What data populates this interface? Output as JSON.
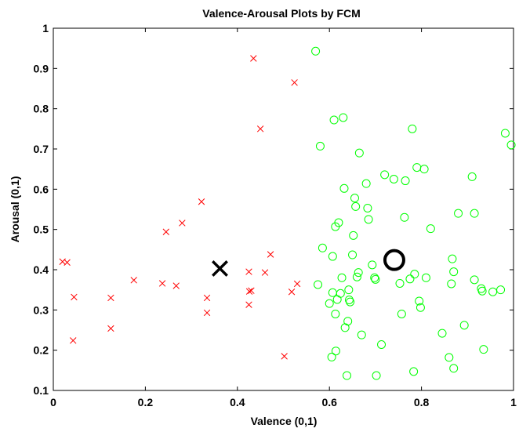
{
  "chart_data": {
    "type": "scatter",
    "title": "Valence-Arousal Plots by FCM",
    "xlabel": "Valence (0,1)",
    "ylabel": "Arousal (0,1)",
    "xlim": [
      0,
      1
    ],
    "ylim": [
      0.1,
      1
    ],
    "xticks": [
      "0",
      "0.2",
      "0.4",
      "0.6",
      "0.8",
      "1"
    ],
    "yticks": [
      "0.1",
      "0.2",
      "0.3",
      "0.4",
      "0.5",
      "0.6",
      "0.7",
      "0.8",
      "0.9",
      "1"
    ],
    "grid": false,
    "series": [
      {
        "marker": "x",
        "color": "#ff0000",
        "points": [
          [
            0.02,
            0.42
          ],
          [
            0.03,
            0.418
          ],
          [
            0.045,
            0.332
          ],
          [
            0.043,
            0.224
          ],
          [
            0.125,
            0.33
          ],
          [
            0.125,
            0.254
          ],
          [
            0.175,
            0.374
          ],
          [
            0.237,
            0.366
          ],
          [
            0.245,
            0.494
          ],
          [
            0.267,
            0.36
          ],
          [
            0.28,
            0.516
          ],
          [
            0.322,
            0.569
          ],
          [
            0.334,
            0.33
          ],
          [
            0.334,
            0.293
          ],
          [
            0.425,
            0.395
          ],
          [
            0.426,
            0.346
          ],
          [
            0.43,
            0.348
          ],
          [
            0.425,
            0.313
          ],
          [
            0.435,
            0.925
          ],
          [
            0.45,
            0.75
          ],
          [
            0.46,
            0.393
          ],
          [
            0.472,
            0.438
          ],
          [
            0.502,
            0.185
          ],
          [
            0.518,
            0.345
          ],
          [
            0.524,
            0.865
          ],
          [
            0.53,
            0.365
          ]
        ]
      },
      {
        "marker": "o",
        "color": "#00ff00",
        "points": [
          [
            0.57,
            0.943
          ],
          [
            0.575,
            0.363
          ],
          [
            0.58,
            0.707
          ],
          [
            0.585,
            0.454
          ],
          [
            0.6,
            0.316
          ],
          [
            0.605,
            0.183
          ],
          [
            0.607,
            0.433
          ],
          [
            0.607,
            0.343
          ],
          [
            0.61,
            0.772
          ],
          [
            0.613,
            0.507
          ],
          [
            0.613,
            0.29
          ],
          [
            0.614,
            0.198
          ],
          [
            0.617,
            0.326
          ],
          [
            0.62,
            0.517
          ],
          [
            0.624,
            0.341
          ],
          [
            0.627,
            0.38
          ],
          [
            0.63,
            0.778
          ],
          [
            0.632,
            0.602
          ],
          [
            0.634,
            0.256
          ],
          [
            0.638,
            0.137
          ],
          [
            0.64,
            0.272
          ],
          [
            0.642,
            0.35
          ],
          [
            0.643,
            0.325
          ],
          [
            0.645,
            0.32
          ],
          [
            0.65,
            0.437
          ],
          [
            0.652,
            0.485
          ],
          [
            0.655,
            0.578
          ],
          [
            0.657,
            0.557
          ],
          [
            0.66,
            0.382
          ],
          [
            0.663,
            0.393
          ],
          [
            0.665,
            0.69
          ],
          [
            0.67,
            0.238
          ],
          [
            0.68,
            0.614
          ],
          [
            0.683,
            0.553
          ],
          [
            0.685,
            0.525
          ],
          [
            0.693,
            0.412
          ],
          [
            0.698,
            0.38
          ],
          [
            0.7,
            0.376
          ],
          [
            0.702,
            0.137
          ],
          [
            0.713,
            0.214
          ],
          [
            0.72,
            0.636
          ],
          [
            0.74,
            0.625
          ],
          [
            0.753,
            0.366
          ],
          [
            0.757,
            0.29
          ],
          [
            0.763,
            0.53
          ],
          [
            0.765,
            0.621
          ],
          [
            0.775,
            0.377
          ],
          [
            0.78,
            0.75
          ],
          [
            0.783,
            0.147
          ],
          [
            0.785,
            0.389
          ],
          [
            0.79,
            0.654
          ],
          [
            0.795,
            0.322
          ],
          [
            0.798,
            0.306
          ],
          [
            0.806,
            0.65
          ],
          [
            0.81,
            0.38
          ],
          [
            0.82,
            0.502
          ],
          [
            0.845,
            0.242
          ],
          [
            0.86,
            0.182
          ],
          [
            0.865,
            0.365
          ],
          [
            0.867,
            0.427
          ],
          [
            0.87,
            0.155
          ],
          [
            0.87,
            0.395
          ],
          [
            0.88,
            0.54
          ],
          [
            0.893,
            0.262
          ],
          [
            0.91,
            0.631
          ],
          [
            0.915,
            0.54
          ],
          [
            0.915,
            0.375
          ],
          [
            0.93,
            0.353
          ],
          [
            0.932,
            0.347
          ],
          [
            0.935,
            0.202
          ],
          [
            0.955,
            0.345
          ],
          [
            0.972,
            0.35
          ],
          [
            0.982,
            0.739
          ],
          [
            0.995,
            0.71
          ]
        ]
      },
      {
        "name": "",
        "marker": "x",
        "color": "#000000",
        "role": "centroid",
        "points": [
          [
            0.362,
            0.403
          ]
        ]
      },
      {
        "name": "",
        "marker": "o",
        "color": "#000000",
        "role": "centroid",
        "points": [
          [
            0.741,
            0.424
          ]
        ]
      }
    ]
  }
}
